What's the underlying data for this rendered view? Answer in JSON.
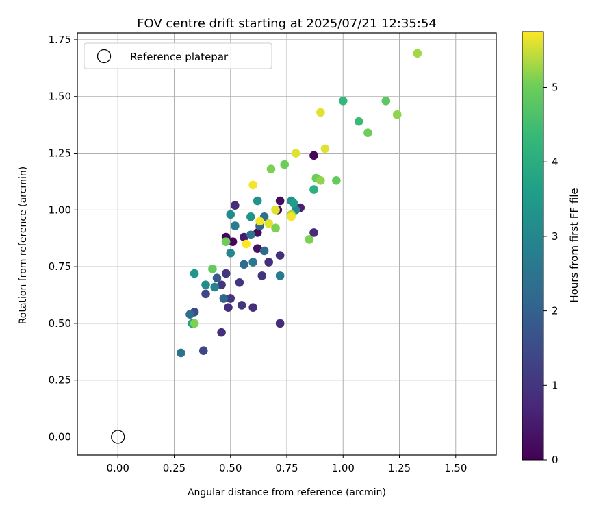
{
  "chart_data": {
    "type": "scatter",
    "title": "FOV centre drift starting at 2025/07/21 12:35:54",
    "xlabel": "Angular distance from reference (arcmin)",
    "ylabel": "Rotation from reference (arcmin)",
    "xlim": [
      -0.18,
      1.68
    ],
    "ylim": [
      -0.08,
      1.78
    ],
    "xticks": [
      "0.00",
      "0.25",
      "0.50",
      "0.75",
      "1.00",
      "1.25",
      "1.50"
    ],
    "yticks": [
      "0.00",
      "0.25",
      "0.50",
      "0.75",
      "1.00",
      "1.25",
      "1.50",
      "1.75"
    ],
    "grid": true,
    "legend": {
      "placement": "top-left",
      "entries": [
        "Reference platepar"
      ]
    },
    "reference": {
      "x": 0.0,
      "y": 0.0,
      "marker": "open-circle"
    },
    "colorbar": {
      "label": "Hours from first FF file",
      "min": 0,
      "max": 5.75,
      "ticks": [
        "0",
        "1",
        "2",
        "3",
        "4",
        "5"
      ],
      "colormap": "viridis"
    },
    "points": [
      {
        "x": 0.48,
        "y": 0.88,
        "h": 0.1
      },
      {
        "x": 0.51,
        "y": 0.86,
        "h": 0.1
      },
      {
        "x": 0.62,
        "y": 0.9,
        "h": 0.2
      },
      {
        "x": 0.72,
        "y": 1.04,
        "h": 0.2
      },
      {
        "x": 0.87,
        "y": 1.24,
        "h": 0.1
      },
      {
        "x": 0.62,
        "y": 0.83,
        "h": 0.3
      },
      {
        "x": 0.56,
        "y": 0.88,
        "h": 0.5
      },
      {
        "x": 0.71,
        "y": 1.0,
        "h": 0.3
      },
      {
        "x": 0.81,
        "y": 1.01,
        "h": 0.6
      },
      {
        "x": 0.52,
        "y": 1.02,
        "h": 0.8
      },
      {
        "x": 0.87,
        "y": 0.9,
        "h": 0.8
      },
      {
        "x": 0.72,
        "y": 0.8,
        "h": 0.9
      },
      {
        "x": 0.67,
        "y": 0.77,
        "h": 0.9
      },
      {
        "x": 0.54,
        "y": 0.68,
        "h": 1.0
      },
      {
        "x": 0.48,
        "y": 0.72,
        "h": 1.0
      },
      {
        "x": 0.64,
        "y": 0.71,
        "h": 1.0
      },
      {
        "x": 0.46,
        "y": 0.67,
        "h": 1.0
      },
      {
        "x": 0.5,
        "y": 0.61,
        "h": 1.0
      },
      {
        "x": 0.49,
        "y": 0.57,
        "h": 0.9
      },
      {
        "x": 0.55,
        "y": 0.58,
        "h": 1.0
      },
      {
        "x": 0.6,
        "y": 0.57,
        "h": 0.9
      },
      {
        "x": 0.72,
        "y": 0.5,
        "h": 0.8
      },
      {
        "x": 0.46,
        "y": 0.46,
        "h": 0.9
      },
      {
        "x": 0.38,
        "y": 0.38,
        "h": 1.4
      },
      {
        "x": 0.39,
        "y": 0.63,
        "h": 1.4
      },
      {
        "x": 0.34,
        "y": 0.55,
        "h": 1.5
      },
      {
        "x": 0.44,
        "y": 0.7,
        "h": 1.8
      },
      {
        "x": 0.47,
        "y": 0.61,
        "h": 2.1
      },
      {
        "x": 0.32,
        "y": 0.54,
        "h": 2.3
      },
      {
        "x": 0.28,
        "y": 0.37,
        "h": 2.5
      },
      {
        "x": 0.56,
        "y": 0.76,
        "h": 2.3
      },
      {
        "x": 0.6,
        "y": 0.77,
        "h": 2.6
      },
      {
        "x": 0.65,
        "y": 0.82,
        "h": 2.2
      },
      {
        "x": 0.72,
        "y": 0.71,
        "h": 2.7
      },
      {
        "x": 0.63,
        "y": 0.93,
        "h": 2.1
      },
      {
        "x": 0.59,
        "y": 0.89,
        "h": 2.5
      },
      {
        "x": 0.52,
        "y": 0.93,
        "h": 2.7
      },
      {
        "x": 0.5,
        "y": 0.81,
        "h": 3.0
      },
      {
        "x": 0.43,
        "y": 0.66,
        "h": 2.9
      },
      {
        "x": 0.39,
        "y": 0.67,
        "h": 3.1
      },
      {
        "x": 0.34,
        "y": 0.72,
        "h": 3.4
      },
      {
        "x": 0.33,
        "y": 0.5,
        "h": 3.6
      },
      {
        "x": 0.65,
        "y": 0.97,
        "h": 2.4
      },
      {
        "x": 0.5,
        "y": 0.98,
        "h": 3.1
      },
      {
        "x": 0.59,
        "y": 0.97,
        "h": 3.3
      },
      {
        "x": 0.62,
        "y": 1.04,
        "h": 3.3
      },
      {
        "x": 0.77,
        "y": 1.04,
        "h": 3.2
      },
      {
        "x": 0.79,
        "y": 1.0,
        "h": 3.0
      },
      {
        "x": 0.78,
        "y": 1.03,
        "h": 3.6
      },
      {
        "x": 0.87,
        "y": 1.09,
        "h": 4.1
      },
      {
        "x": 1.0,
        "y": 1.48,
        "h": 4.3
      },
      {
        "x": 1.07,
        "y": 1.39,
        "h": 4.4
      },
      {
        "x": 1.19,
        "y": 1.48,
        "h": 4.8
      },
      {
        "x": 1.11,
        "y": 1.34,
        "h": 5.0
      },
      {
        "x": 1.24,
        "y": 1.42,
        "h": 5.2
      },
      {
        "x": 1.33,
        "y": 1.69,
        "h": 5.3
      },
      {
        "x": 0.97,
        "y": 1.13,
        "h": 4.9
      },
      {
        "x": 0.88,
        "y": 1.14,
        "h": 5.0
      },
      {
        "x": 0.9,
        "y": 1.13,
        "h": 5.2
      },
      {
        "x": 0.74,
        "y": 1.2,
        "h": 5.0
      },
      {
        "x": 0.68,
        "y": 1.18,
        "h": 5.1
      },
      {
        "x": 0.85,
        "y": 0.87,
        "h": 5.1
      },
      {
        "x": 0.48,
        "y": 0.86,
        "h": 5.0
      },
      {
        "x": 0.42,
        "y": 0.74,
        "h": 4.9
      },
      {
        "x": 0.34,
        "y": 0.5,
        "h": 5.1
      },
      {
        "x": 0.7,
        "y": 0.92,
        "h": 5.1
      },
      {
        "x": 0.77,
        "y": 0.98,
        "h": 5.3
      },
      {
        "x": 0.79,
        "y": 1.25,
        "h": 5.6
      },
      {
        "x": 0.92,
        "y": 1.27,
        "h": 5.6
      },
      {
        "x": 0.9,
        "y": 1.43,
        "h": 5.6
      },
      {
        "x": 0.6,
        "y": 1.11,
        "h": 5.7
      },
      {
        "x": 0.63,
        "y": 0.95,
        "h": 5.7
      },
      {
        "x": 0.67,
        "y": 0.94,
        "h": 5.6
      },
      {
        "x": 0.7,
        "y": 1.0,
        "h": 5.6
      },
      {
        "x": 0.57,
        "y": 0.85,
        "h": 5.75
      },
      {
        "x": 0.77,
        "y": 0.97,
        "h": 5.7
      }
    ]
  }
}
